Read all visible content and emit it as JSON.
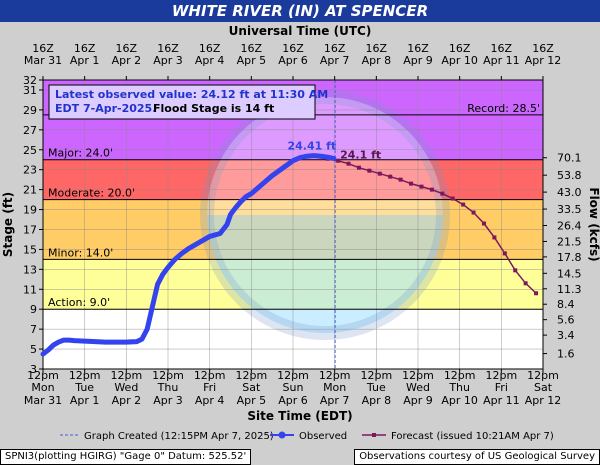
{
  "chart_data": {
    "type": "line",
    "title": "WHITE RIVER (IN) AT SPENCER",
    "top_axis_label": "Universal Time (UTC)",
    "xlabel": "Site Time (EDT)",
    "ylabel": "Stage (ft)",
    "y2label": "Flow (kcfs)",
    "x_range": [
      "2025-03-31T12:00",
      "2025-04-12T12:00"
    ],
    "ylim": [
      3,
      32
    ],
    "y_ticks": [
      3,
      5,
      7,
      9,
      11,
      13,
      15,
      17,
      19,
      21,
      23,
      25,
      27,
      29,
      31,
      32
    ],
    "flow_ticks": [
      {
        "stage": 4.55,
        "label": "1.6"
      },
      {
        "stage": 6.4,
        "label": "3.4"
      },
      {
        "stage": 7.95,
        "label": "5.6"
      },
      {
        "stage": 9.5,
        "label": "8.4"
      },
      {
        "stage": 11.05,
        "label": "11.3"
      },
      {
        "stage": 12.6,
        "label": "14.5"
      },
      {
        "stage": 14.25,
        "label": "17.8"
      },
      {
        "stage": 15.8,
        "label": "21.5"
      },
      {
        "stage": 17.4,
        "label": "26.4"
      },
      {
        "stage": 19.05,
        "label": "33.5"
      },
      {
        "stage": 20.75,
        "label": "43.0"
      },
      {
        "stage": 22.45,
        "label": "53.8"
      },
      {
        "stage": 24.2,
        "label": "70.1"
      }
    ],
    "bottom_ticks": [
      {
        "top": "12pm",
        "bottom": "Mon"
      },
      {
        "top": "12pm",
        "bottom": "Tue"
      },
      {
        "top": "12pm",
        "bottom": "Wed"
      },
      {
        "top": "12pm",
        "bottom": "Thu"
      },
      {
        "top": "12pm",
        "bottom": "Fri"
      },
      {
        "top": "12pm",
        "bottom": "Sat"
      },
      {
        "top": "12pm",
        "bottom": "Sun"
      },
      {
        "top": "12pm",
        "bottom": "Mon"
      },
      {
        "top": "12pm",
        "bottom": "Tue"
      },
      {
        "top": "12pm",
        "bottom": "Wed"
      },
      {
        "top": "12pm",
        "bottom": "Thu"
      },
      {
        "top": "12pm",
        "bottom": "Fri"
      },
      {
        "top": "12pm",
        "bottom": "Sat"
      }
    ],
    "bottom_dates": [
      "Mar 31",
      "Apr 1",
      "Apr 2",
      "Apr 3",
      "Apr 4",
      "Apr 5",
      "Apr 6",
      "Apr 7",
      "Apr 8",
      "Apr 9",
      "Apr 10",
      "Apr 11",
      "Apr 12"
    ],
    "top_ticks": [
      {
        "time": "16Z",
        "date": "Mar 31"
      },
      {
        "time": "16Z",
        "date": "Apr 1"
      },
      {
        "time": "16Z",
        "date": "Apr 2"
      },
      {
        "time": "16Z",
        "date": "Apr 3"
      },
      {
        "time": "16Z",
        "date": "Apr 4"
      },
      {
        "time": "16Z",
        "date": "Apr 5"
      },
      {
        "time": "16Z",
        "date": "Apr 6"
      },
      {
        "time": "16Z",
        "date": "Apr 7"
      },
      {
        "time": "16Z",
        "date": "Apr 8"
      },
      {
        "time": "16Z",
        "date": "Apr 9"
      },
      {
        "time": "16Z",
        "date": "Apr 10"
      },
      {
        "time": "16Z",
        "date": "Apr 11"
      },
      {
        "time": "16Z",
        "date": "Apr 12"
      }
    ],
    "flood_categories": [
      {
        "name": "Action",
        "label": "Action: 9.0'",
        "stage": 9.0,
        "color": "#ffff99"
      },
      {
        "name": "Minor",
        "label": "Minor: 14.0'",
        "stage": 14.0,
        "color": "#ffcc66"
      },
      {
        "name": "Moderate",
        "label": "Moderate: 20.0'",
        "stage": 20.0,
        "color": "#ff6666"
      },
      {
        "name": "Major",
        "label": "Major: 24.0'",
        "stage": 24.0,
        "color": "#cc66ff"
      }
    ],
    "record": {
      "label": "Record: 28.5'",
      "stage": 28.5
    },
    "created_time": "2025-04-07T12:15",
    "info_box": {
      "line1": "Latest observed value: 24.12 ft at 11:30 AM",
      "line2": "EDT 7-Apr-2025.",
      "line2b": "Flood Stage is 14 ft"
    },
    "series": [
      {
        "name": "Observed",
        "color": "#3344ee",
        "x": [
          "2025-03-31T12:00",
          "2025-03-31T15:00",
          "2025-03-31T18:00",
          "2025-03-31T21:00",
          "2025-04-01T00:00",
          "2025-04-01T03:00",
          "2025-04-01T06:00",
          "2025-04-01T12:00",
          "2025-04-01T18:00",
          "2025-04-02T00:00",
          "2025-04-02T06:00",
          "2025-04-02T12:00",
          "2025-04-02T18:00",
          "2025-04-02T21:00",
          "2025-04-03T00:00",
          "2025-04-03T02:00",
          "2025-04-03T04:00",
          "2025-04-03T06:00",
          "2025-04-03T09:00",
          "2025-04-03T12:00",
          "2025-04-03T16:00",
          "2025-04-03T20:00",
          "2025-04-04T00:00",
          "2025-04-04T06:00",
          "2025-04-04T12:00",
          "2025-04-04T18:00",
          "2025-04-04T22:00",
          "2025-04-05T00:00",
          "2025-04-05T03:00",
          "2025-04-05T06:00",
          "2025-04-05T09:00",
          "2025-04-05T12:00",
          "2025-04-05T16:00",
          "2025-04-05T20:00",
          "2025-04-06T00:00",
          "2025-04-06T04:00",
          "2025-04-06T08:00",
          "2025-04-06T12:00",
          "2025-04-06T16:00",
          "2025-04-06T20:00",
          "2025-04-07T00:00",
          "2025-04-07T04:00",
          "2025-04-07T08:00",
          "2025-04-07T11:30"
        ],
        "y": [
          4.5,
          4.9,
          5.4,
          5.7,
          5.9,
          5.9,
          5.85,
          5.8,
          5.75,
          5.7,
          5.7,
          5.7,
          5.75,
          6.0,
          7.0,
          8.5,
          10.0,
          11.5,
          12.5,
          13.2,
          14.0,
          14.6,
          15.1,
          15.7,
          16.3,
          16.6,
          17.5,
          18.5,
          19.2,
          19.8,
          20.3,
          20.6,
          21.2,
          21.8,
          22.4,
          22.9,
          23.4,
          23.9,
          24.2,
          24.35,
          24.41,
          24.35,
          24.25,
          24.12
        ],
        "peak_label": "24.41 ft"
      },
      {
        "name": "Forecast",
        "color": "#7a1a5e",
        "x": [
          "2025-04-07T08:00",
          "2025-04-07T14:00",
          "2025-04-07T20:00",
          "2025-04-08T02:00",
          "2025-04-08T08:00",
          "2025-04-08T14:00",
          "2025-04-08T20:00",
          "2025-04-09T02:00",
          "2025-04-09T08:00",
          "2025-04-09T14:00",
          "2025-04-09T20:00",
          "2025-04-10T02:00",
          "2025-04-10T08:00",
          "2025-04-10T14:00",
          "2025-04-10T20:00",
          "2025-04-11T02:00",
          "2025-04-11T08:00",
          "2025-04-11T14:00",
          "2025-04-11T20:00",
          "2025-04-12T02:00",
          "2025-04-12T08:00"
        ],
        "y": [
          24.1,
          23.9,
          23.6,
          23.2,
          22.9,
          22.6,
          22.3,
          22.0,
          21.6,
          21.3,
          21.0,
          20.6,
          20.1,
          19.5,
          18.7,
          17.6,
          16.2,
          14.6,
          12.9,
          11.6,
          10.6
        ],
        "peak_label": "24.1 ft"
      }
    ],
    "legend": {
      "created": "Graph Created (12:15PM Apr 7, 2025)",
      "observed": "Observed",
      "forecast": "Forecast (issued 10:21AM Apr 7)"
    }
  },
  "footer": {
    "datum": "SPNI3(plotting HGIRG) \"Gage 0\" Datum: 525.52'",
    "source": "Observations courtesy of US Geological Survey"
  }
}
